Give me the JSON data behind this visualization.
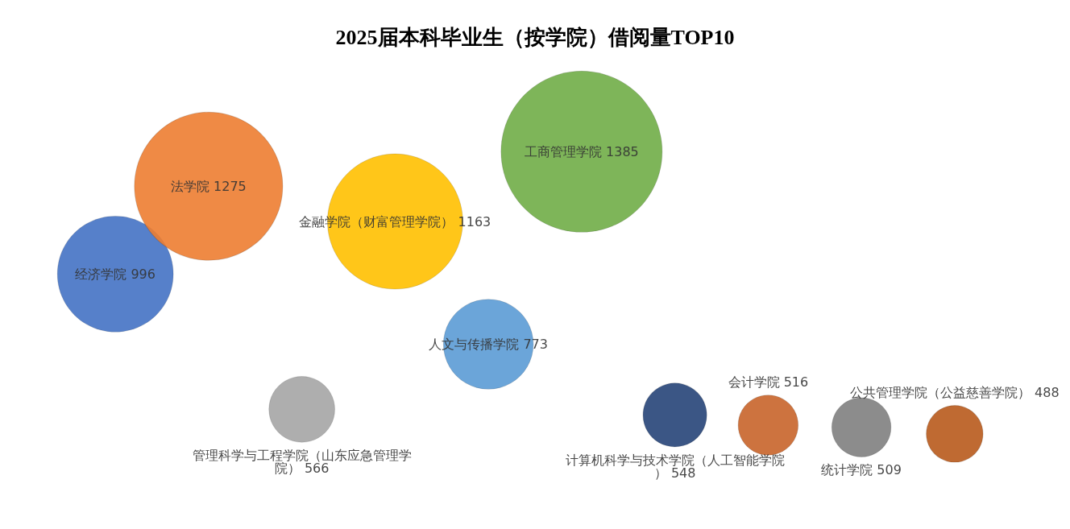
{
  "chart_data": {
    "type": "other",
    "title": "2025届本科毕业生（按学院）借阅量TOP10",
    "categories": [
      "经济学院",
      "法学院",
      "管理科学与工程学院（山东应急管理学院）",
      "金融学院（财富管理学院）",
      "人文与传播学院",
      "工商管理学院",
      "计算机科学与技术学院（人工智能学院）",
      "会计学院",
      "统计学院",
      "公共管理学院（公益慈善学院）"
    ],
    "values": [
      996,
      1275,
      566,
      1163,
      773,
      1385,
      548,
      516,
      509,
      488
    ],
    "colors": [
      "#4472c4",
      "#ed7d31",
      "#a5a5a5",
      "#ffc000",
      "#5b9bd5",
      "#70ad47",
      "#264478",
      "#c8642a",
      "#7f7f7f",
      "#b85a1c"
    ],
    "data_labels": true
  }
}
